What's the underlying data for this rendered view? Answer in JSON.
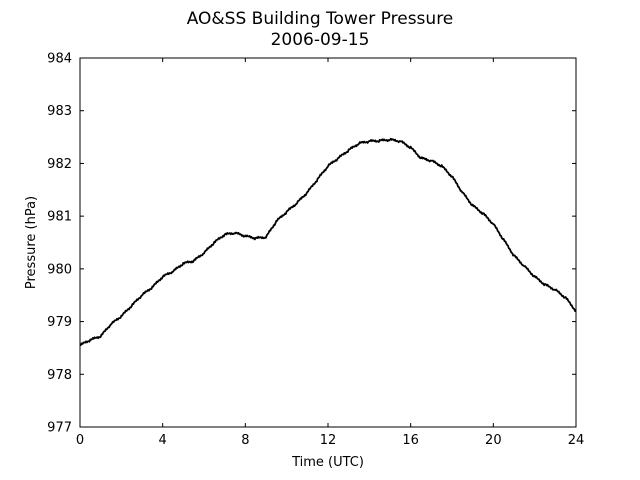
{
  "chart_data": {
    "type": "line",
    "title": "AO&SS Building Tower Pressure",
    "subtitle": "2006-09-15",
    "xlabel": "Time (UTC)",
    "ylabel": "Pressure (hPa)",
    "xlim": [
      0,
      24
    ],
    "ylim": [
      977,
      984
    ],
    "xticks": [
      0,
      4,
      8,
      12,
      16,
      20,
      24
    ],
    "yticks": [
      977,
      978,
      979,
      980,
      981,
      982,
      983,
      984
    ],
    "grid": false,
    "line_color": "#000000",
    "series": [
      {
        "x": [
          0,
          0.5,
          1.0,
          1.5,
          2.0,
          2.5,
          3.0,
          3.5,
          4.0,
          4.5,
          5.0,
          5.5,
          6.0,
          6.5,
          7.0,
          7.5,
          8.0,
          8.5,
          9.0,
          9.5,
          10.0,
          10.5,
          11.0,
          11.5,
          12.0,
          12.5,
          13.0,
          13.5,
          14.0,
          14.5,
          15.0,
          15.5,
          16.0,
          16.5,
          17.0,
          17.5,
          18.0,
          18.5,
          19.0,
          19.5,
          20.0,
          20.5,
          21.0,
          21.5,
          22.0,
          22.5,
          23.0,
          23.5,
          24.0
        ],
        "y": [
          978.55,
          978.65,
          978.72,
          978.95,
          979.1,
          979.3,
          979.5,
          979.65,
          979.85,
          979.95,
          980.1,
          980.15,
          980.3,
          980.5,
          980.65,
          980.68,
          980.62,
          980.58,
          980.6,
          980.9,
          981.08,
          981.25,
          981.45,
          981.7,
          981.95,
          982.1,
          982.25,
          982.38,
          982.42,
          982.43,
          982.45,
          982.42,
          982.3,
          982.1,
          982.05,
          981.95,
          981.75,
          981.45,
          981.2,
          981.05,
          980.85,
          980.55,
          980.25,
          980.05,
          979.85,
          979.7,
          979.6,
          979.45,
          979.2
        ]
      }
    ]
  }
}
